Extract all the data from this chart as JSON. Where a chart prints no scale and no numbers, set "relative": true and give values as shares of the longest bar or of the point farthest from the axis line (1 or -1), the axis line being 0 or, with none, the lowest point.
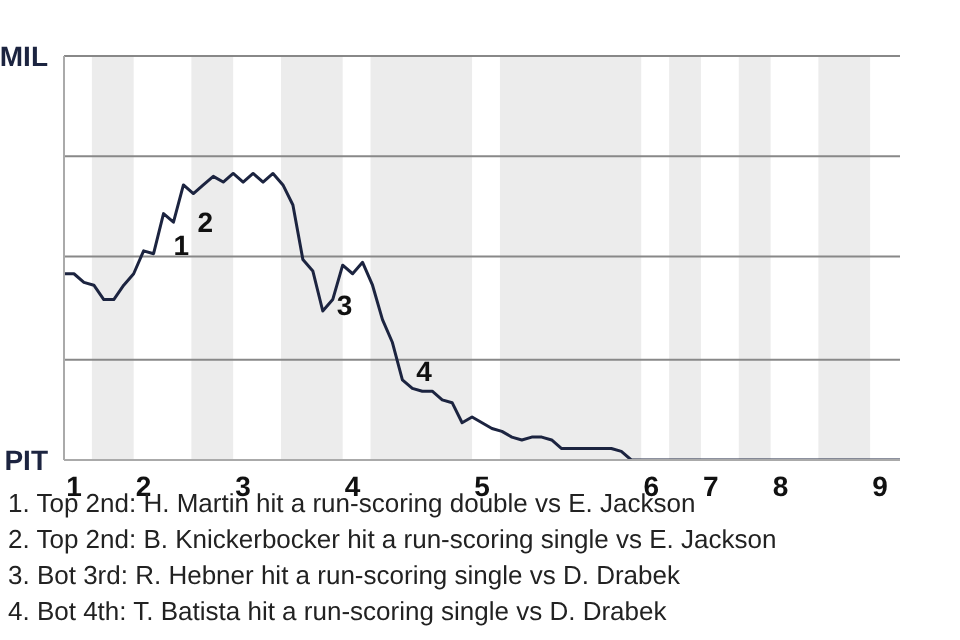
{
  "chart_data": {
    "type": "line",
    "relative": true,
    "categories": [
      null,
      "1",
      null,
      null,
      null,
      null,
      null,
      null,
      "2",
      null,
      null,
      null,
      null,
      null,
      null,
      null,
      null,
      null,
      "3",
      null,
      null,
      null,
      null,
      null,
      null,
      null,
      null,
      null,
      null,
      "4",
      null,
      null,
      null,
      null,
      null,
      null,
      null,
      null,
      null,
      null,
      null,
      null,
      "5",
      null,
      null,
      null,
      null,
      null,
      null,
      null,
      null,
      null,
      null,
      null,
      null,
      null,
      null,
      null,
      null,
      "6",
      null,
      null,
      null,
      null,
      null,
      "7",
      null,
      null,
      null,
      null,
      null,
      null,
      "8",
      null,
      null,
      null,
      null,
      null,
      null,
      null,
      null,
      null,
      "9",
      null,
      null
    ],
    "series": [
      {
        "color": "#1c2440",
        "values": [
          0.65,
          0.65,
          0.62,
          0.61,
          0.56,
          0.56,
          0.61,
          0.65,
          0.73,
          0.72,
          0.86,
          0.83,
          0.96,
          0.93,
          0.96,
          0.99,
          0.97,
          1,
          0.97,
          1,
          0.97,
          1,
          0.96,
          0.89,
          0.7,
          0.66,
          0.52,
          0.56,
          0.68,
          0.65,
          0.69,
          0.61,
          0.49,
          0.41,
          0.28,
          0.25,
          0.24,
          0.24,
          0.21,
          0.2,
          0.13,
          0.15,
          0.13,
          0.11,
          0.1,
          0.08,
          0.07,
          0.08,
          0.08,
          0.07,
          0.04,
          0.04,
          0.04,
          0.04,
          0.04,
          0.04,
          0.03,
          0,
          0,
          0,
          0,
          0,
          0,
          0,
          0,
          0,
          0,
          0,
          0,
          0,
          0,
          0,
          0,
          0,
          0,
          0,
          0,
          0,
          0,
          0,
          0,
          0,
          0,
          0,
          0
        ]
      }
    ],
    "ref_lines": [
      {
        "axis": "y",
        "value": 0.35,
        "color": "#888888"
      },
      {
        "axis": "y",
        "value": 0.71,
        "color": "#888888"
      },
      {
        "axis": "y",
        "value": 1.06,
        "color": "#888888"
      },
      {
        "axis": "y",
        "value": 1.41,
        "color": "#888888"
      }
    ],
    "annotations": [
      "1",
      "2",
      "3",
      "4",
      "MIL",
      "PIT",
      "1. Top 2nd: H. Martin hit a run-scoring double vs E. Jackson",
      "2. Top 2nd: B. Knickerbocker hit a run-scoring single vs E. Jackson",
      "3. Bot 3rd: R. Hebner hit a run-scoring single vs D. Drabek",
      "4. Bot 4th: T. Batista hit a run-scoring single vs D. Drabek"
    ]
  }
}
